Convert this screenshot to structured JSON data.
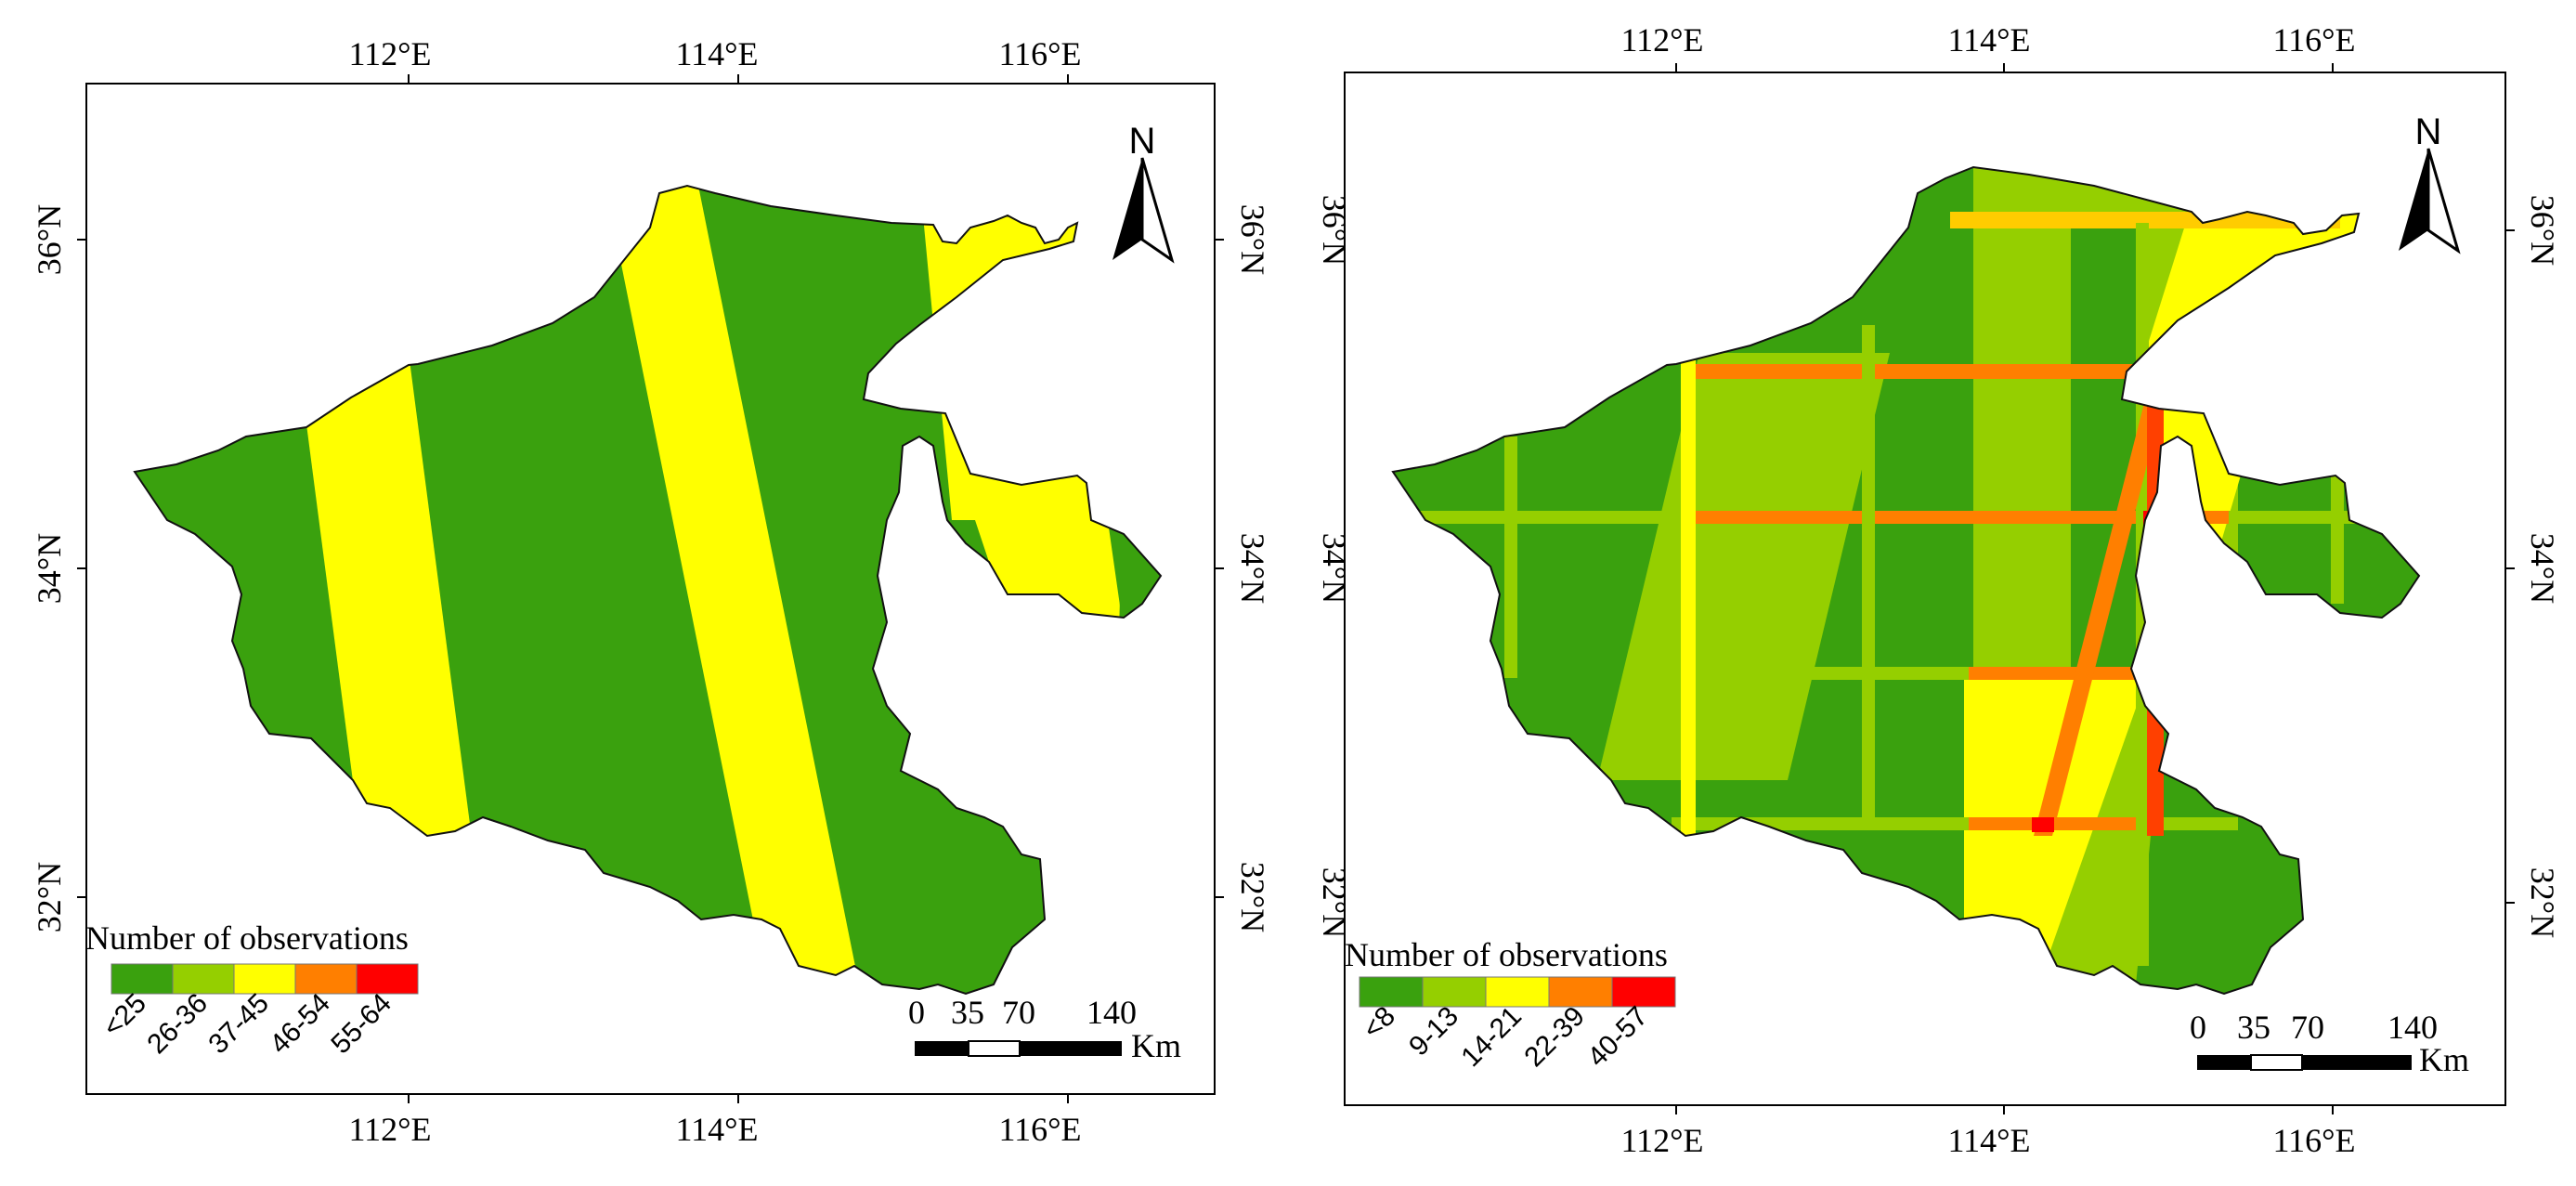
{
  "maps": [
    {
      "lon_labels": [
        "112°E",
        "114°E",
        "116°E"
      ],
      "lat_labels": [
        "36°N",
        "34°N",
        "32°N"
      ],
      "north_label": "N",
      "legend": {
        "title": "Number of observations",
        "classes": [
          {
            "label": "<25",
            "color": "#3aa10e"
          },
          {
            "label": "26-36",
            "color": "#95cf00"
          },
          {
            "label": "37-45",
            "color": "#ffff00"
          },
          {
            "label": "46-54",
            "color": "#ff7f00"
          },
          {
            "label": "55-64",
            "color": "#ff0000"
          }
        ]
      },
      "scale_bar": {
        "ticks": [
          "0",
          "35",
          "70",
          "140"
        ],
        "unit": "Km"
      }
    },
    {
      "lon_labels": [
        "112°E",
        "114°E",
        "116°E"
      ],
      "lat_labels": [
        "36°N",
        "34°N",
        "32°N"
      ],
      "north_label": "N",
      "legend": {
        "title": "Number of observations",
        "classes": [
          {
            "label": "<8",
            "color": "#3aa10e"
          },
          {
            "label": "9-13",
            "color": "#95cf00"
          },
          {
            "label": "14-21",
            "color": "#ffff00"
          },
          {
            "label": "22-39",
            "color": "#ff7f00"
          },
          {
            "label": "40-57",
            "color": "#ff0000"
          }
        ]
      },
      "scale_bar": {
        "ticks": [
          "0",
          "35",
          "70",
          "140"
        ],
        "unit": "Km"
      }
    }
  ]
}
